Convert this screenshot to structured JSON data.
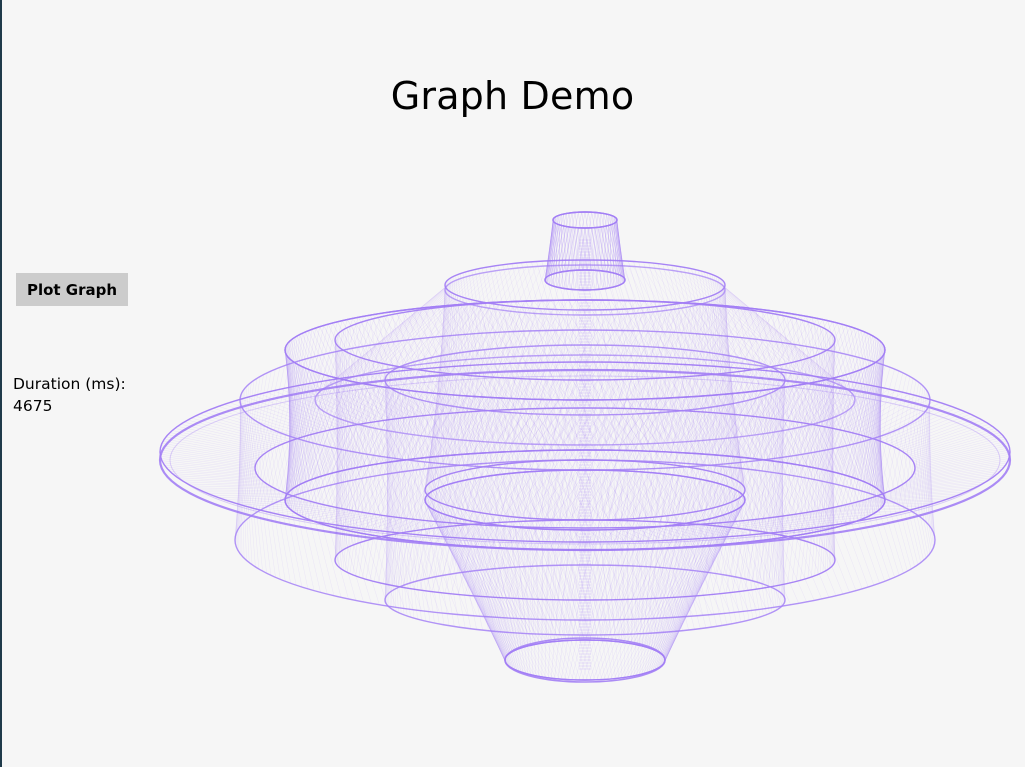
{
  "app": {
    "title": "Graph Demo"
  },
  "controls": {
    "plot_button_label": "Plot Graph"
  },
  "stats": {
    "duration_label": "Duration (ms):",
    "duration_value": "4675"
  },
  "graph": {
    "stroke_color": "#a37ff5"
  },
  "colors": {
    "background": "#f6f6f6",
    "button_bg": "#cccccc",
    "window_edge": "#1f3a4a"
  }
}
